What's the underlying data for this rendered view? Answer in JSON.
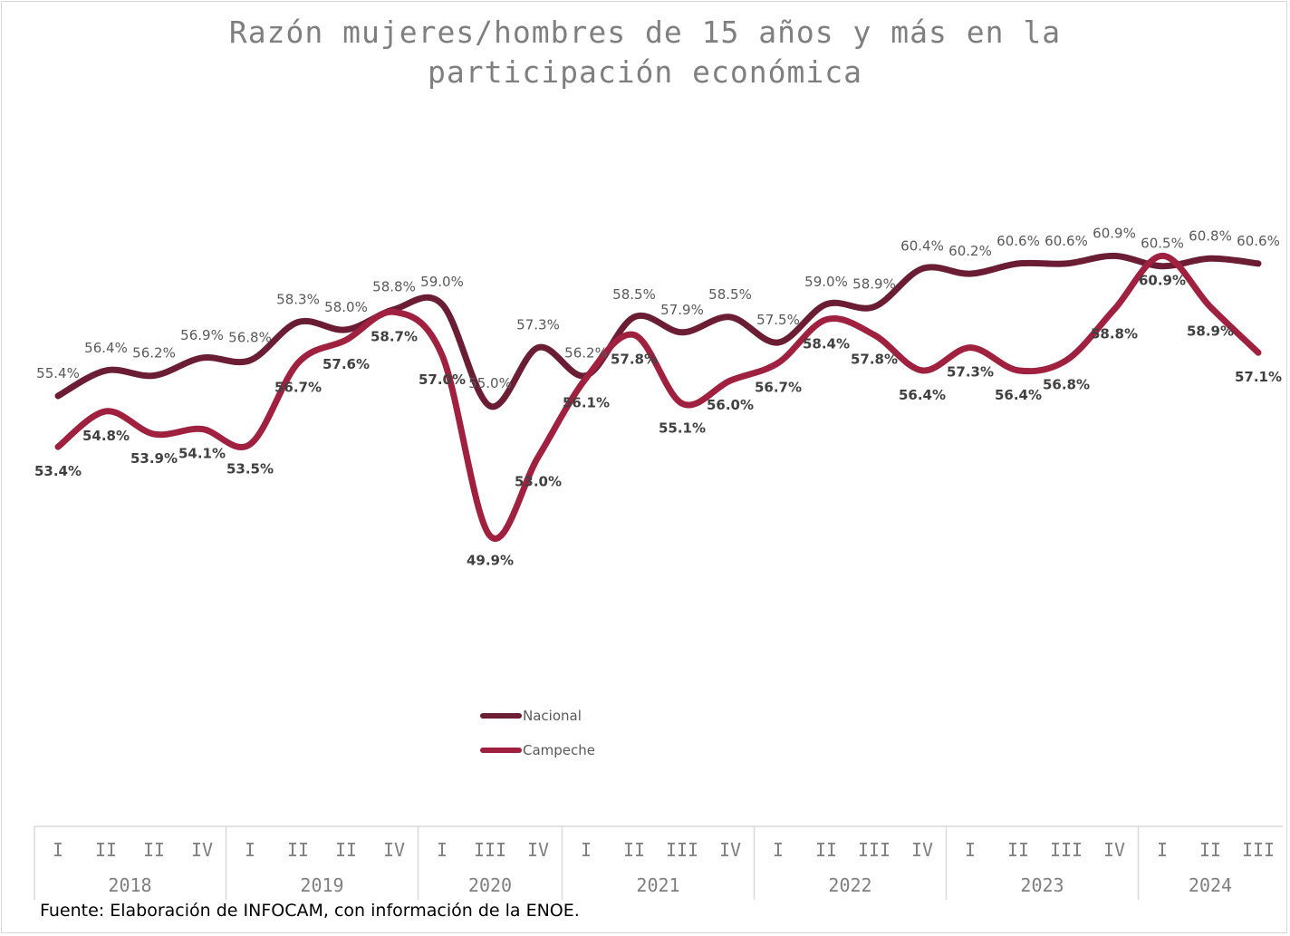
{
  "title": "Razón mujeres/hombres de 15 años y más en la participación económica",
  "source": "Fuente: Elaboración de INFOCAM, con información de la  ENOE.",
  "colors": {
    "nacional": "#6b1d33",
    "campeche": "#a0213f"
  },
  "chart_data": {
    "type": "line",
    "x": [
      {
        "year": "2018",
        "quarter": "I"
      },
      {
        "year": "2018",
        "quarter": "II"
      },
      {
        "year": "2018",
        "quarter": "II"
      },
      {
        "year": "2018",
        "quarter": "IV"
      },
      {
        "year": "2019",
        "quarter": "I"
      },
      {
        "year": "2019",
        "quarter": "II"
      },
      {
        "year": "2019",
        "quarter": "II"
      },
      {
        "year": "2019",
        "quarter": "IV"
      },
      {
        "year": "2020",
        "quarter": "I"
      },
      {
        "year": "2020",
        "quarter": "III"
      },
      {
        "year": "2020",
        "quarter": "IV"
      },
      {
        "year": "2021",
        "quarter": "I"
      },
      {
        "year": "2021",
        "quarter": "II"
      },
      {
        "year": "2021",
        "quarter": "III"
      },
      {
        "year": "2021",
        "quarter": "IV"
      },
      {
        "year": "2022",
        "quarter": "I"
      },
      {
        "year": "2022",
        "quarter": "II"
      },
      {
        "year": "2022",
        "quarter": "III"
      },
      {
        "year": "2022",
        "quarter": "IV"
      },
      {
        "year": "2023",
        "quarter": "I"
      },
      {
        "year": "2023",
        "quarter": "II"
      },
      {
        "year": "2023",
        "quarter": "III"
      },
      {
        "year": "2023",
        "quarter": "IV"
      },
      {
        "year": "2024",
        "quarter": "I"
      },
      {
        "year": "2024",
        "quarter": "II"
      },
      {
        "year": "2024",
        "quarter": "III"
      }
    ],
    "years": [
      "2018",
      "2019",
      "2020",
      "2021",
      "2022",
      "2023",
      "2024"
    ],
    "series": [
      {
        "name": "Nacional",
        "values": [
          55.4,
          56.4,
          56.2,
          56.9,
          56.8,
          58.3,
          58.0,
          58.8,
          59.0,
          55.0,
          57.3,
          56.2,
          58.5,
          57.9,
          58.5,
          57.5,
          59.0,
          58.9,
          60.4,
          60.2,
          60.6,
          60.6,
          60.9,
          60.5,
          60.8,
          60.6
        ],
        "labels": [
          "55.4%",
          "56.4%",
          "56.2%",
          "56.9%",
          "56.8%",
          "58.3%",
          "58.0%",
          "58.8%",
          "59.0%",
          "55.0%",
          "57.3%",
          "56.2%",
          "58.5%",
          "57.9%",
          "58.5%",
          "57.5%",
          "59.0%",
          "58.9%",
          "60.4%",
          "60.2%",
          "60.6%",
          "60.6%",
          "60.9%",
          "60.5%",
          "60.8%",
          "60.6%"
        ]
      },
      {
        "name": "Campeche",
        "values": [
          53.4,
          54.8,
          53.9,
          54.1,
          53.5,
          56.7,
          57.6,
          58.7,
          57.0,
          49.9,
          53.0,
          56.1,
          57.8,
          55.1,
          56.0,
          56.7,
          58.4,
          57.8,
          56.4,
          57.3,
          56.4,
          56.8,
          58.8,
          60.9,
          58.9,
          57.1
        ],
        "labels": [
          "53.4%",
          "54.8%",
          "53.9%",
          "54.1%",
          "53.5%",
          "56.7%",
          "57.6%",
          "58.7%",
          "57.0%",
          "49.9%",
          "53.0%",
          "56.1%",
          "57.8%",
          "55.1%",
          "56.0%",
          "56.7%",
          "58.4%",
          "57.8%",
          "56.4%",
          "57.3%",
          "56.4%",
          "56.8%",
          "58.8%",
          "60.9%",
          "58.9%",
          "57.1%"
        ]
      }
    ],
    "legend": "center-bottom",
    "grid": false
  }
}
